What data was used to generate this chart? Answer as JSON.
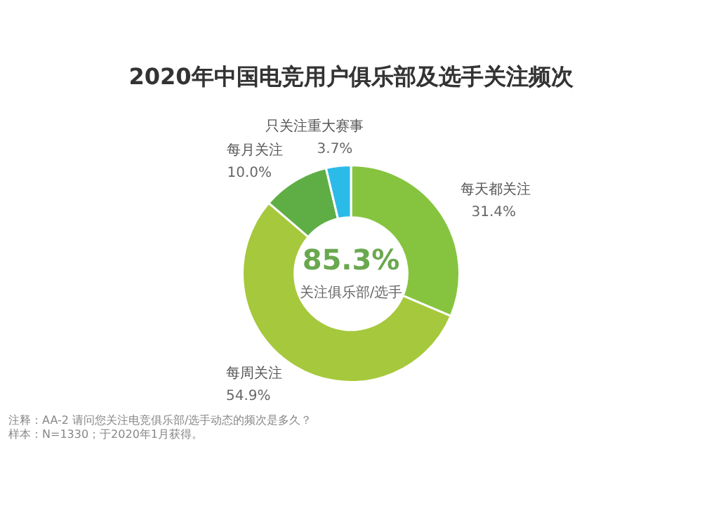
{
  "chart_data": {
    "type": "donut",
    "title": "2020年中国电竞用户俱乐部及选手关注频次",
    "categories": [
      "每天都关注",
      "每周关注",
      "每月关注",
      "只关注重大赛事"
    ],
    "values": [
      31.4,
      54.9,
      10.0,
      3.7
    ],
    "colors": [
      "#86c440",
      "#a6c83c",
      "#5fae45",
      "#2bbbe8"
    ],
    "value_labels": [
      "31.4%",
      "54.9%",
      "10.0%",
      "3.7%"
    ],
    "legend": false,
    "annotations": [
      "85.3%",
      "关注俱乐部/选手",
      "注释：AA-2 请问您关注电竞俱乐部/选手动态的频次是多久？",
      "样本：N=1330；于2020年1月获得。"
    ]
  }
}
